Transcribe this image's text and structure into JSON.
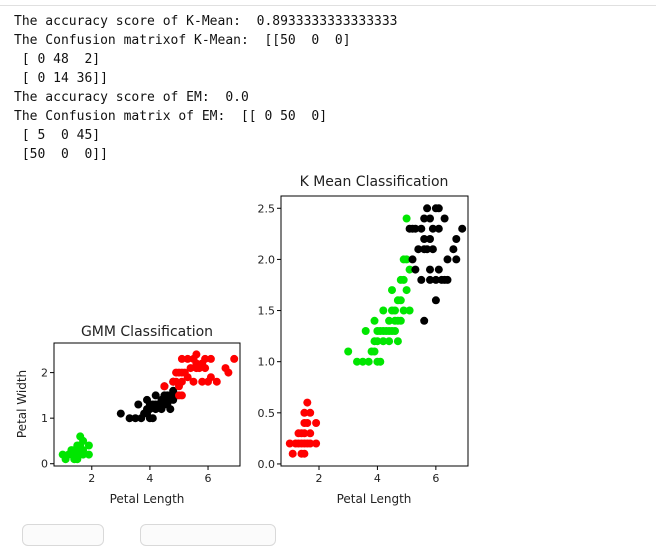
{
  "output_lines": [
    "The accuracy score of K-Mean:  0.8933333333333333",
    "The Confusion matrixof K-Mean:  [[50  0  0]",
    " [ 0 48  2]",
    " [ 0 14 36]]",
    "The accuracy score of EM:  0.0",
    "The Confusion matrix of EM:  [[ 0 50  0]",
    " [ 5  0 45]",
    " [50  0  0]]"
  ],
  "colors": {
    "green": "#00e600",
    "black": "#000000",
    "red": "#ff0000"
  },
  "chart_data": [
    {
      "type": "scatter",
      "title": "GMM Classification",
      "xlabel": "Petal Length",
      "ylabel": "Petal Width",
      "xlim": [
        0.7,
        7.1
      ],
      "ylim": [
        -0.05,
        2.65
      ],
      "xticks": [
        2,
        4,
        6
      ],
      "yticks": [
        0,
        1,
        2
      ],
      "grid": false,
      "series": [
        {
          "color": "#00e600",
          "points": [
            [
              1.0,
              0.2
            ],
            [
              1.1,
              0.1
            ],
            [
              1.2,
              0.2
            ],
            [
              1.3,
              0.2
            ],
            [
              1.3,
              0.3
            ],
            [
              1.4,
              0.1
            ],
            [
              1.4,
              0.2
            ],
            [
              1.4,
              0.3
            ],
            [
              1.5,
              0.1
            ],
            [
              1.5,
              0.2
            ],
            [
              1.5,
              0.3
            ],
            [
              1.5,
              0.4
            ],
            [
              1.6,
              0.2
            ],
            [
              1.6,
              0.4
            ],
            [
              1.6,
              0.6
            ],
            [
              1.7,
              0.2
            ],
            [
              1.7,
              0.3
            ],
            [
              1.7,
              0.5
            ],
            [
              1.9,
              0.2
            ],
            [
              1.9,
              0.4
            ]
          ]
        },
        {
          "color": "#000000",
          "points": [
            [
              3.0,
              1.1
            ],
            [
              3.3,
              1.0
            ],
            [
              3.5,
              1.0
            ],
            [
              3.6,
              1.3
            ],
            [
              3.7,
              1.0
            ],
            [
              3.8,
              1.1
            ],
            [
              3.9,
              1.1
            ],
            [
              3.9,
              1.2
            ],
            [
              3.9,
              1.4
            ],
            [
              4.0,
              1.0
            ],
            [
              4.0,
              1.2
            ],
            [
              4.0,
              1.3
            ],
            [
              4.1,
              1.0
            ],
            [
              4.1,
              1.3
            ],
            [
              4.2,
              1.2
            ],
            [
              4.2,
              1.3
            ],
            [
              4.2,
              1.5
            ],
            [
              4.3,
              1.3
            ],
            [
              4.4,
              1.2
            ],
            [
              4.4,
              1.3
            ],
            [
              4.4,
              1.4
            ],
            [
              4.5,
              1.3
            ],
            [
              4.5,
              1.5
            ],
            [
              4.6,
              1.3
            ],
            [
              4.6,
              1.4
            ],
            [
              4.6,
              1.5
            ],
            [
              4.7,
              1.2
            ],
            [
              4.7,
              1.4
            ],
            [
              4.8,
              1.4
            ],
            [
              4.8,
              1.8
            ],
            [
              4.9,
              1.5
            ],
            [
              4.5,
              1.7
            ],
            [
              4.7,
              1.5
            ],
            [
              4.8,
              1.6
            ]
          ]
        },
        {
          "color": "#ff0000",
          "points": [
            [
              4.5,
              1.7
            ],
            [
              4.8,
              1.8
            ],
            [
              4.9,
              1.8
            ],
            [
              5.0,
              1.5
            ],
            [
              5.0,
              1.7
            ],
            [
              5.0,
              2.0
            ],
            [
              5.1,
              1.5
            ],
            [
              5.1,
              1.8
            ],
            [
              5.1,
              2.0
            ],
            [
              5.1,
              2.3
            ],
            [
              5.2,
              2.0
            ],
            [
              5.3,
              1.9
            ],
            [
              5.4,
              2.1
            ],
            [
              5.5,
              1.8
            ],
            [
              5.6,
              2.1
            ],
            [
              5.6,
              2.4
            ],
            [
              5.7,
              2.1
            ],
            [
              5.8,
              1.8
            ],
            [
              5.8,
              2.2
            ],
            [
              5.9,
              2.1
            ],
            [
              6.0,
              1.8
            ],
            [
              6.1,
              1.9
            ],
            [
              6.1,
              2.3
            ],
            [
              6.3,
              1.8
            ],
            [
              6.6,
              2.1
            ],
            [
              6.7,
              2.0
            ],
            [
              6.9,
              2.3
            ],
            [
              5.9,
              2.3
            ],
            [
              5.5,
              2.3
            ],
            [
              5.3,
              2.3
            ],
            [
              4.9,
              2.0
            ],
            [
              5.6,
              2.2
            ]
          ]
        }
      ]
    },
    {
      "type": "scatter",
      "title": "K Mean Classification",
      "xlabel": "Petal Length",
      "ylabel": "Petal Width",
      "xlim": [
        0.7,
        7.1
      ],
      "ylim": [
        -0.02,
        2.62
      ],
      "xticks": [
        2,
        4,
        6
      ],
      "yticks": [
        0.0,
        0.5,
        1.0,
        1.5,
        2.0,
        2.5
      ],
      "grid": false,
      "series": [
        {
          "color": "#ff0000",
          "points": [
            [
              1.0,
              0.2
            ],
            [
              1.1,
              0.1
            ],
            [
              1.2,
              0.2
            ],
            [
              1.3,
              0.2
            ],
            [
              1.3,
              0.3
            ],
            [
              1.4,
              0.1
            ],
            [
              1.4,
              0.2
            ],
            [
              1.4,
              0.3
            ],
            [
              1.5,
              0.1
            ],
            [
              1.5,
              0.2
            ],
            [
              1.5,
              0.3
            ],
            [
              1.5,
              0.4
            ],
            [
              1.6,
              0.2
            ],
            [
              1.6,
              0.4
            ],
            [
              1.6,
              0.6
            ],
            [
              1.7,
              0.2
            ],
            [
              1.7,
              0.3
            ],
            [
              1.7,
              0.5
            ],
            [
              1.9,
              0.2
            ],
            [
              1.9,
              0.4
            ],
            [
              1.5,
              0.5
            ]
          ]
        },
        {
          "color": "#00e600",
          "points": [
            [
              3.0,
              1.1
            ],
            [
              3.3,
              1.0
            ],
            [
              3.5,
              1.0
            ],
            [
              3.6,
              1.3
            ],
            [
              3.7,
              1.0
            ],
            [
              3.8,
              1.1
            ],
            [
              3.9,
              1.1
            ],
            [
              3.9,
              1.2
            ],
            [
              3.9,
              1.4
            ],
            [
              4.0,
              1.0
            ],
            [
              4.0,
              1.2
            ],
            [
              4.0,
              1.3
            ],
            [
              4.1,
              1.0
            ],
            [
              4.1,
              1.3
            ],
            [
              4.2,
              1.2
            ],
            [
              4.2,
              1.3
            ],
            [
              4.2,
              1.5
            ],
            [
              4.3,
              1.3
            ],
            [
              4.4,
              1.2
            ],
            [
              4.4,
              1.3
            ],
            [
              4.4,
              1.4
            ],
            [
              4.5,
              1.3
            ],
            [
              4.5,
              1.5
            ],
            [
              4.6,
              1.3
            ],
            [
              4.6,
              1.4
            ],
            [
              4.6,
              1.5
            ],
            [
              4.7,
              1.2
            ],
            [
              4.7,
              1.4
            ],
            [
              4.7,
              1.6
            ],
            [
              4.8,
              1.4
            ],
            [
              4.8,
              1.8
            ],
            [
              4.9,
              1.5
            ],
            [
              4.9,
              1.8
            ],
            [
              5.0,
              1.7
            ],
            [
              5.0,
              2.0
            ],
            [
              5.0,
              2.4
            ],
            [
              5.1,
              1.9
            ],
            [
              4.5,
              1.7
            ],
            [
              4.8,
              1.6
            ],
            [
              5.1,
              1.5
            ],
            [
              4.9,
              2.0
            ]
          ]
        },
        {
          "color": "#000000",
          "points": [
            [
              5.1,
              2.3
            ],
            [
              5.2,
              2.0
            ],
            [
              5.3,
              1.9
            ],
            [
              5.4,
              2.1
            ],
            [
              5.5,
              1.8
            ],
            [
              5.6,
              2.1
            ],
            [
              5.6,
              2.4
            ],
            [
              5.7,
              2.1
            ],
            [
              5.8,
              1.8
            ],
            [
              5.8,
              2.2
            ],
            [
              5.9,
              2.1
            ],
            [
              6.0,
              1.8
            ],
            [
              6.1,
              1.9
            ],
            [
              6.1,
              2.3
            ],
            [
              6.3,
              1.8
            ],
            [
              6.6,
              2.1
            ],
            [
              6.7,
              2.0
            ],
            [
              6.9,
              2.3
            ],
            [
              5.9,
              2.3
            ],
            [
              5.5,
              2.3
            ],
            [
              5.3,
              2.3
            ],
            [
              5.6,
              2.2
            ],
            [
              5.7,
              2.5
            ],
            [
              5.8,
              2.4
            ],
            [
              6.0,
              2.5
            ],
            [
              6.1,
              2.5
            ],
            [
              6.7,
              2.2
            ],
            [
              6.4,
              1.8
            ],
            [
              6.0,
              1.6
            ],
            [
              5.6,
              1.4
            ],
            [
              5.8,
              1.9
            ],
            [
              6.2,
              1.8
            ],
            [
              5.2,
              2.3
            ],
            [
              6.3,
              2.4
            ],
            [
              6.4,
              2.0
            ]
          ]
        }
      ]
    }
  ]
}
